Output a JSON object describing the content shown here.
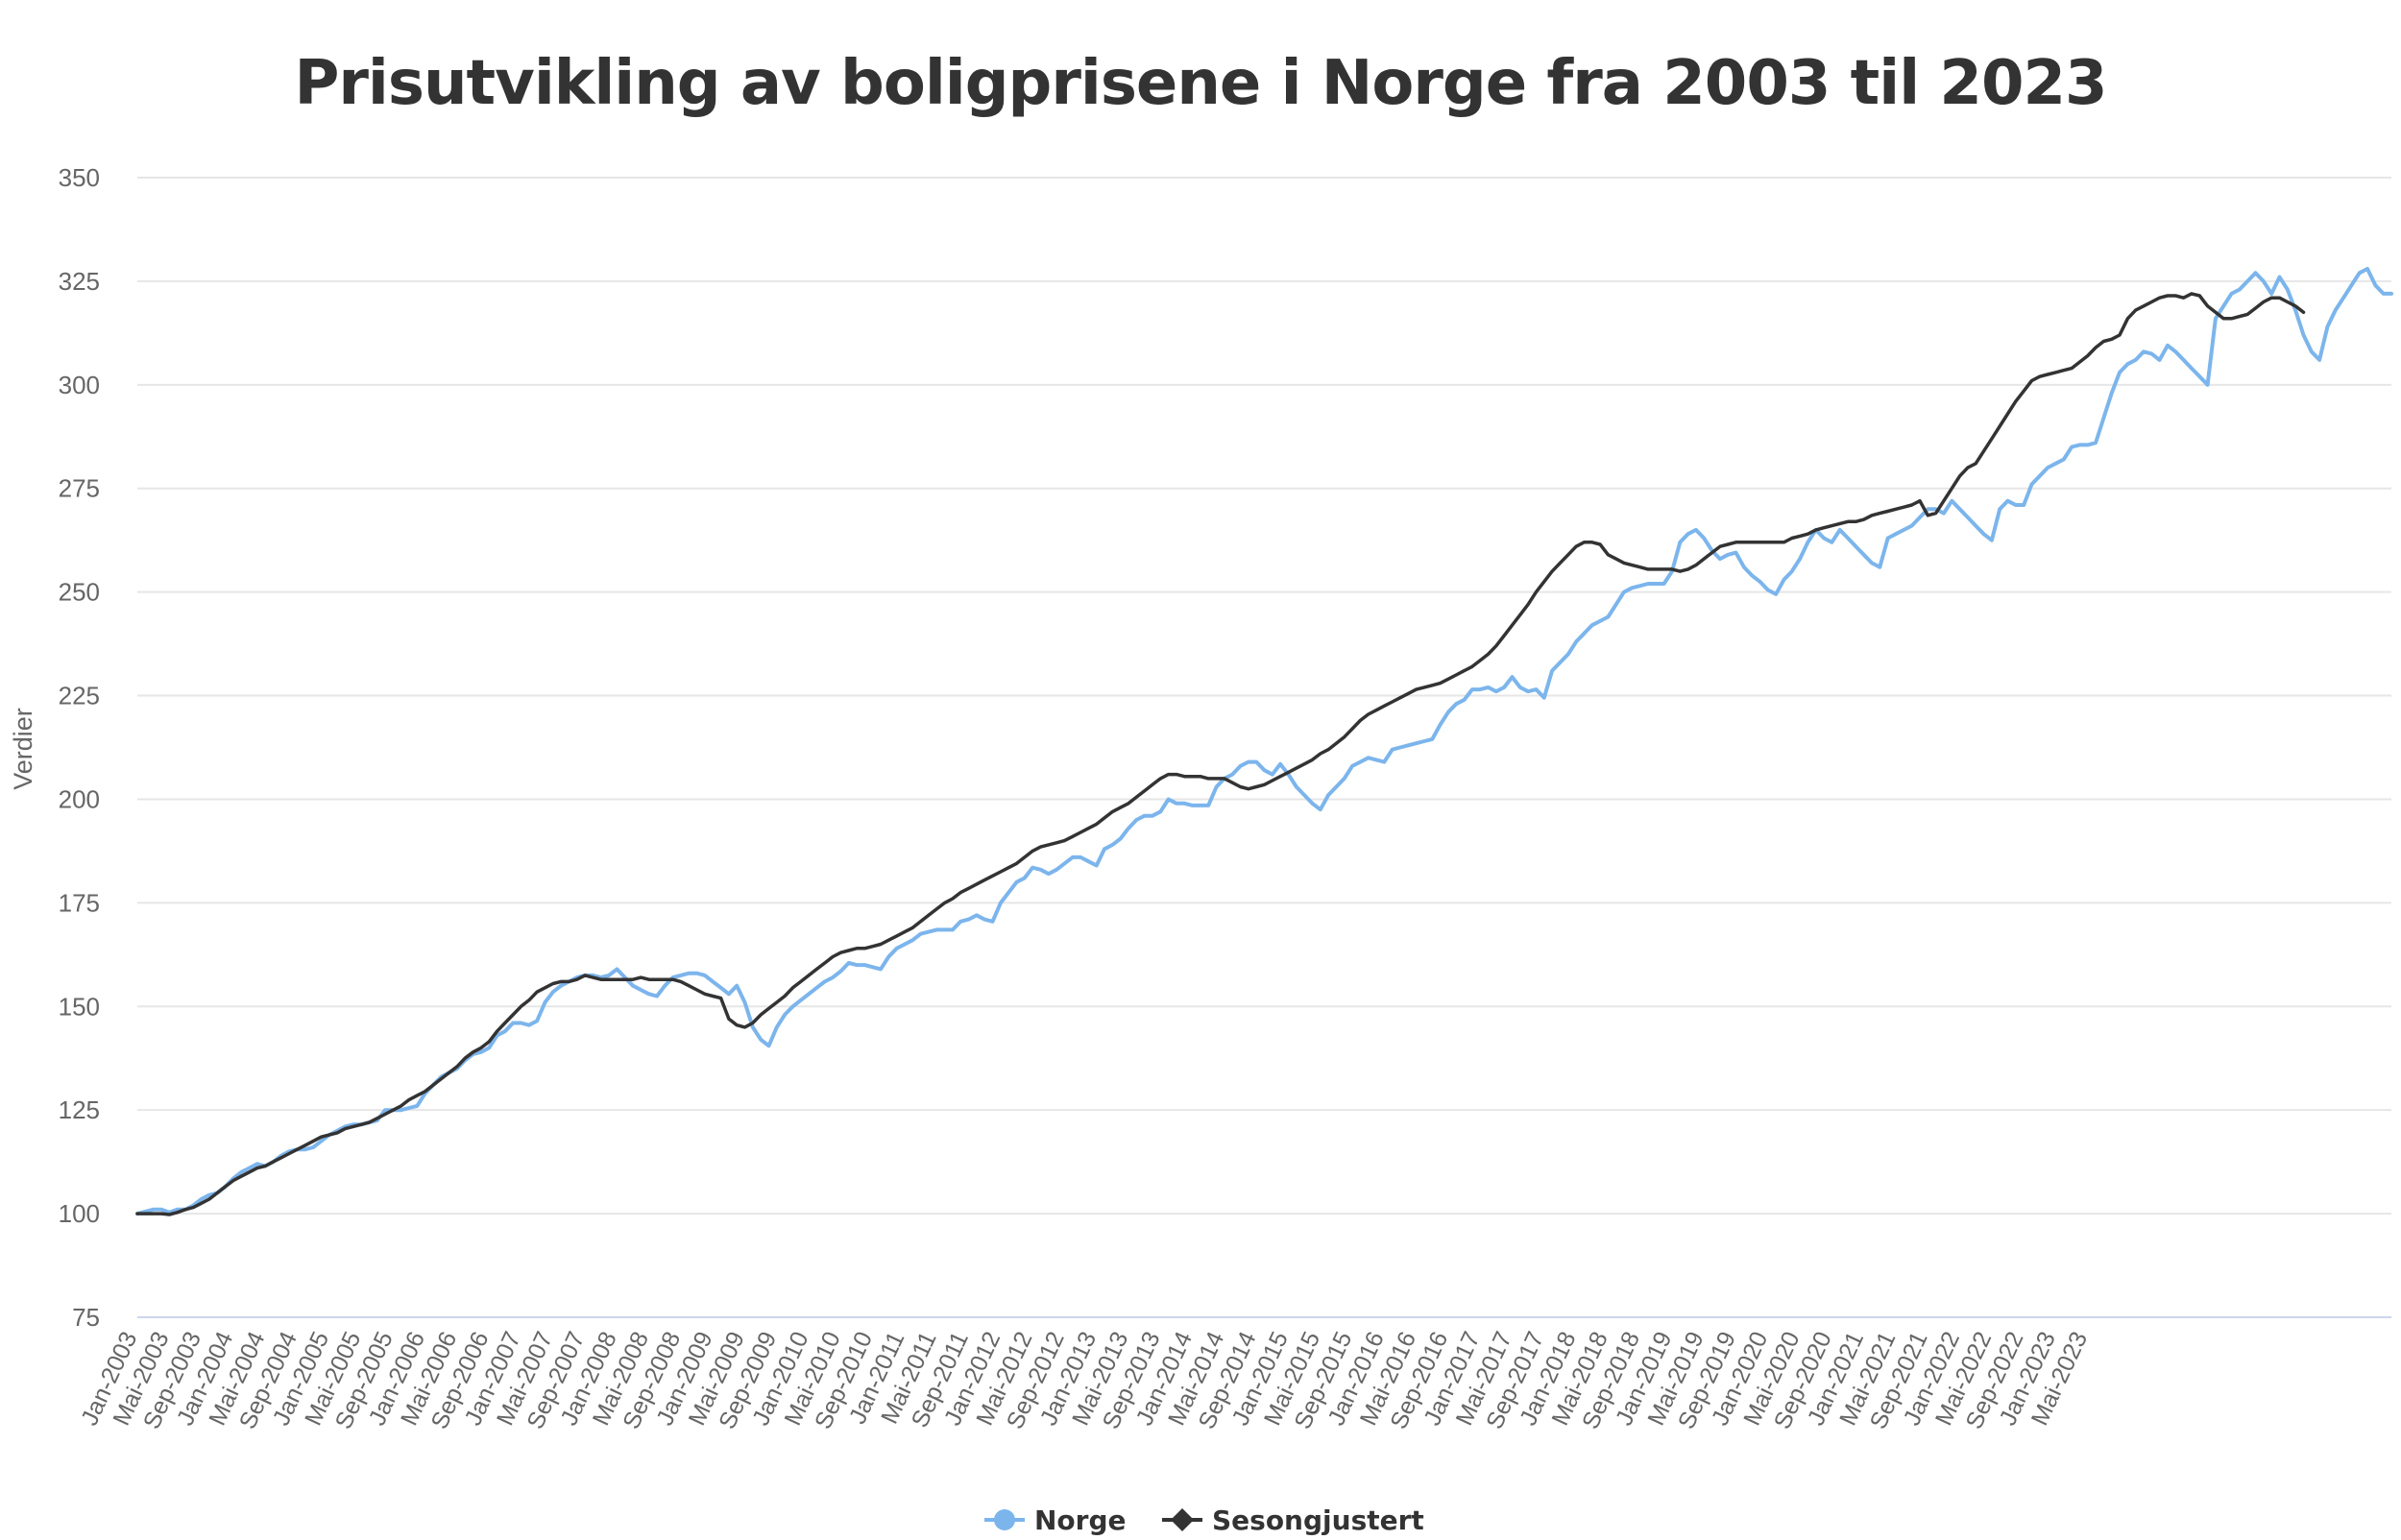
{
  "chart_data": {
    "type": "line",
    "title": "Prisutvikling av boligprisene i Norge fra 2003 til 2023",
    "ylabel": "Verdier",
    "xlabel": "",
    "ylim": [
      75,
      350
    ],
    "y_ticks": [
      75,
      100,
      125,
      150,
      175,
      200,
      225,
      250,
      275,
      300,
      325,
      350
    ],
    "x_tick_labels": [
      "Jan-2003",
      "Mai-2003",
      "Sep-2003",
      "Jan-2004",
      "Mai-2004",
      "Sep-2004",
      "Jan-2005",
      "Mai-2005",
      "Sep-2005",
      "Jan-2006",
      "Mai-2006",
      "Sep-2006",
      "Jan-2007",
      "Mai-2007",
      "Sep-2007",
      "Jan-2008",
      "Mai-2008",
      "Sep-2008",
      "Jan-2009",
      "Mai-2009",
      "Sep-2009",
      "Jan-2010",
      "Mai-2010",
      "Sep-2010",
      "Jan-2011",
      "Mai-2011",
      "Sep-2011",
      "Jan-2012",
      "Mai-2012",
      "Sep-2012",
      "Jan-2013",
      "Mai-2013",
      "Sep-2013",
      "Jan-2014",
      "Mai-2014",
      "Sep-2014",
      "Jan-2015",
      "Mai-2015",
      "Sep-2015",
      "Jan-2016",
      "Mai-2016",
      "Sep-2016",
      "Jan-2017",
      "Mai-2017",
      "Sep-2017",
      "Jan-2018",
      "Mai-2018",
      "Sep-2018",
      "Jan-2019",
      "Mai-2019",
      "Sep-2019",
      "Jan-2020",
      "Mai-2020",
      "Sep-2020",
      "Jan-2021",
      "Mai-2021",
      "Sep-2021",
      "Jan-2022",
      "Mai-2022",
      "Sep-2022",
      "Jan-2023",
      "Mai-2023"
    ],
    "grid": true,
    "legend_position": "bottom-center",
    "series": [
      {
        "name": "Norge",
        "color": "#7cb5ec",
        "marker": "circle",
        "values": [
          100,
          100.5,
          101,
          101,
          100.3,
          101,
          101,
          102,
          103.5,
          104.5,
          105,
          106.5,
          108.5,
          110,
          111,
          112,
          111.5,
          112.5,
          114,
          115,
          115.5,
          115.5,
          116,
          117.5,
          119,
          120,
          121,
          121.5,
          121.5,
          122,
          122.5,
          125,
          125,
          125,
          125.5,
          126,
          129,
          131,
          133,
          134,
          135,
          137,
          138.5,
          139,
          140,
          143,
          144,
          146,
          146,
          145.5,
          146.5,
          151,
          153.5,
          155,
          156,
          157,
          157.5,
          157.5,
          157,
          157.5,
          159,
          157,
          155,
          154,
          153,
          152.5,
          155,
          157,
          157.5,
          158,
          158,
          157.5,
          156,
          154.5,
          153,
          155,
          151,
          145,
          142,
          140.5,
          145,
          148,
          150,
          151.5,
          153,
          154.5,
          156,
          157,
          158.5,
          160.5,
          160,
          160,
          159.5,
          159,
          162,
          164,
          165,
          166,
          167.5,
          168,
          168.5,
          168.5,
          168.5,
          170.5,
          171,
          172,
          171,
          170.5,
          175,
          177.5,
          180,
          181,
          183.5,
          183,
          182,
          183,
          184.5,
          186,
          186,
          185,
          184,
          188,
          189,
          190.5,
          193,
          195,
          196,
          196,
          197,
          200,
          199,
          199,
          198.5,
          198.5,
          198.5,
          203,
          205,
          206,
          208,
          209,
          209,
          207,
          206,
          208.5,
          206,
          203,
          201,
          199,
          197.5,
          201,
          203,
          205,
          208,
          209,
          210,
          209.5,
          209,
          212,
          212.5,
          213,
          213.5,
          214,
          214.5,
          218,
          221,
          223,
          224,
          226.5,
          226.5,
          227,
          226,
          227,
          229.5,
          227,
          226,
          226.5,
          224.5,
          231,
          233,
          235,
          238,
          240,
          242,
          243,
          244,
          247,
          250,
          251,
          251.5,
          252,
          252,
          252,
          255,
          262,
          264,
          265,
          263,
          260,
          258,
          259,
          259.5,
          256,
          254,
          252.5,
          250.5,
          249.5,
          253,
          255,
          258,
          262,
          265,
          263,
          262,
          265,
          263,
          261,
          259,
          257,
          256,
          263,
          264,
          265,
          266,
          268,
          270,
          270,
          269,
          272,
          270,
          268,
          266,
          264,
          262.5,
          270,
          272,
          271,
          271,
          276,
          278,
          280,
          281,
          282,
          285,
          285.5,
          285.5,
          286,
          292,
          298,
          303,
          305,
          306,
          308,
          307.5,
          306,
          309.5,
          308,
          306,
          304,
          302,
          300,
          316,
          319,
          322,
          323,
          325,
          327,
          325,
          322,
          326,
          323,
          318,
          312,
          308,
          306,
          314,
          318,
          321,
          324,
          327,
          328,
          324,
          322,
          322
        ]
      },
      {
        "name": "Sesongjustert",
        "color": "#333333",
        "marker": "diamond",
        "values": [
          100,
          100,
          100,
          100,
          99.8,
          100.3,
          101,
          101.5,
          102.5,
          103.5,
          105,
          106.5,
          108,
          109,
          110,
          111,
          111.5,
          112.5,
          113.5,
          114.5,
          115.5,
          116.5,
          117.5,
          118.5,
          119,
          119.5,
          120.5,
          121,
          121.5,
          122,
          123,
          124,
          125,
          126,
          127.5,
          128.5,
          129.5,
          131,
          132.5,
          134,
          135.5,
          137.5,
          139,
          140,
          141.5,
          144,
          146,
          148,
          150,
          151.5,
          153.5,
          154.5,
          155.5,
          156,
          156,
          156.5,
          157.5,
          157,
          156.5,
          156.5,
          156.5,
          156.5,
          156.5,
          157,
          156.5,
          156.5,
          156.5,
          156.5,
          156,
          155,
          154,
          153,
          152.5,
          152,
          147,
          145.5,
          145,
          146,
          148,
          149.5,
          151,
          152.5,
          154.5,
          156,
          157.5,
          159,
          160.5,
          162,
          163,
          163.5,
          164,
          164,
          164.5,
          165,
          166,
          167,
          168,
          169,
          170.5,
          172,
          173.5,
          175,
          176,
          177.5,
          178.5,
          179.5,
          180.5,
          181.5,
          182.5,
          183.5,
          184.5,
          186,
          187.5,
          188.5,
          189,
          189.5,
          190,
          191,
          192,
          193,
          194,
          195.5,
          197,
          198,
          199,
          200.5,
          202,
          203.5,
          205,
          206,
          206,
          205.5,
          205.5,
          205.5,
          205,
          205,
          205,
          204,
          203,
          202.5,
          203,
          203.5,
          204.5,
          205.5,
          206.5,
          207.5,
          208.5,
          209.5,
          211,
          212,
          213.5,
          215,
          217,
          219,
          220.5,
          221.5,
          222.5,
          223.5,
          224.5,
          225.5,
          226.5,
          227,
          227.5,
          228,
          229,
          230,
          231,
          232,
          233.5,
          235,
          237,
          239.5,
          242,
          244.5,
          247,
          250,
          252.5,
          255,
          257,
          259,
          261,
          262,
          262,
          261.5,
          259,
          258,
          257,
          256.5,
          256,
          255.5,
          255.5,
          255.5,
          255.5,
          255,
          255.5,
          256.5,
          258,
          259.5,
          261,
          261.5,
          262,
          262,
          262,
          262,
          262,
          262,
          262,
          263,
          263.5,
          264,
          265,
          265.5,
          266,
          266.5,
          267,
          267,
          267.5,
          268.5,
          269,
          269.5,
          270,
          270.5,
          271,
          272,
          268.5,
          269,
          272,
          275,
          278,
          280,
          281,
          284,
          287,
          290,
          293,
          296,
          298.5,
          301,
          302,
          302.5,
          303,
          303.5,
          304,
          305.5,
          307,
          309,
          310.5,
          311,
          312,
          316,
          318,
          319,
          320,
          321,
          321.5,
          321.5,
          321,
          322,
          321.5,
          319,
          317.5,
          316,
          316,
          316.5,
          317,
          318.5,
          320,
          321,
          321,
          320,
          319,
          317.5
        ]
      }
    ]
  }
}
